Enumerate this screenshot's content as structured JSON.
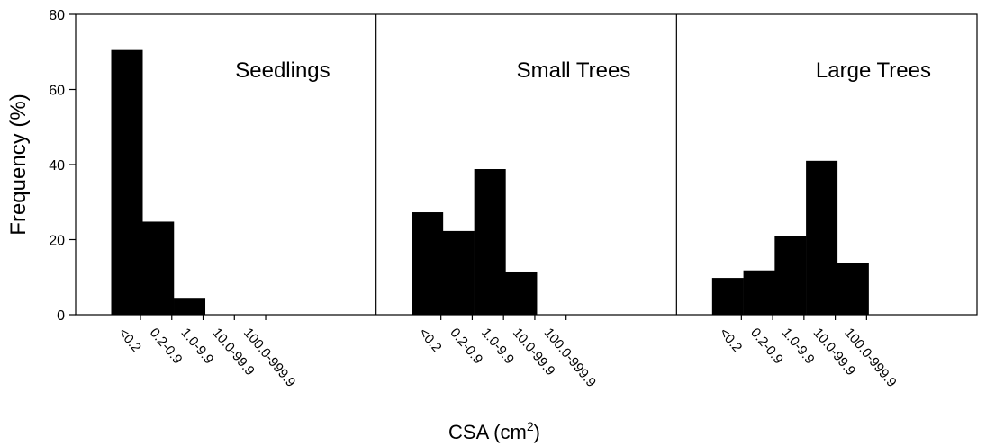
{
  "chart_data": {
    "type": "bar",
    "categories": [
      "<0.2",
      "0.2-0.9",
      "1.0-9.9",
      "10.0-99.9",
      "100.0-999.9"
    ],
    "panels": [
      {
        "name": "Seedlings",
        "values": [
          70.5,
          24.8,
          4.5,
          0,
          0
        ]
      },
      {
        "name": "Small Trees",
        "values": [
          27.3,
          22.3,
          38.8,
          11.5,
          0
        ]
      },
      {
        "name": "Large Trees",
        "values": [
          9.8,
          11.8,
          21.0,
          41.0,
          13.7
        ]
      }
    ],
    "xlabel": "CSA (cm",
    "xlabel_sup": "2",
    "xlabel_close": ")",
    "ylabel": "Frequency (%)",
    "ylim": [
      0,
      80
    ],
    "yticks": [
      0,
      20,
      40,
      60,
      80
    ],
    "grid": false,
    "bar_color": "#000000"
  }
}
